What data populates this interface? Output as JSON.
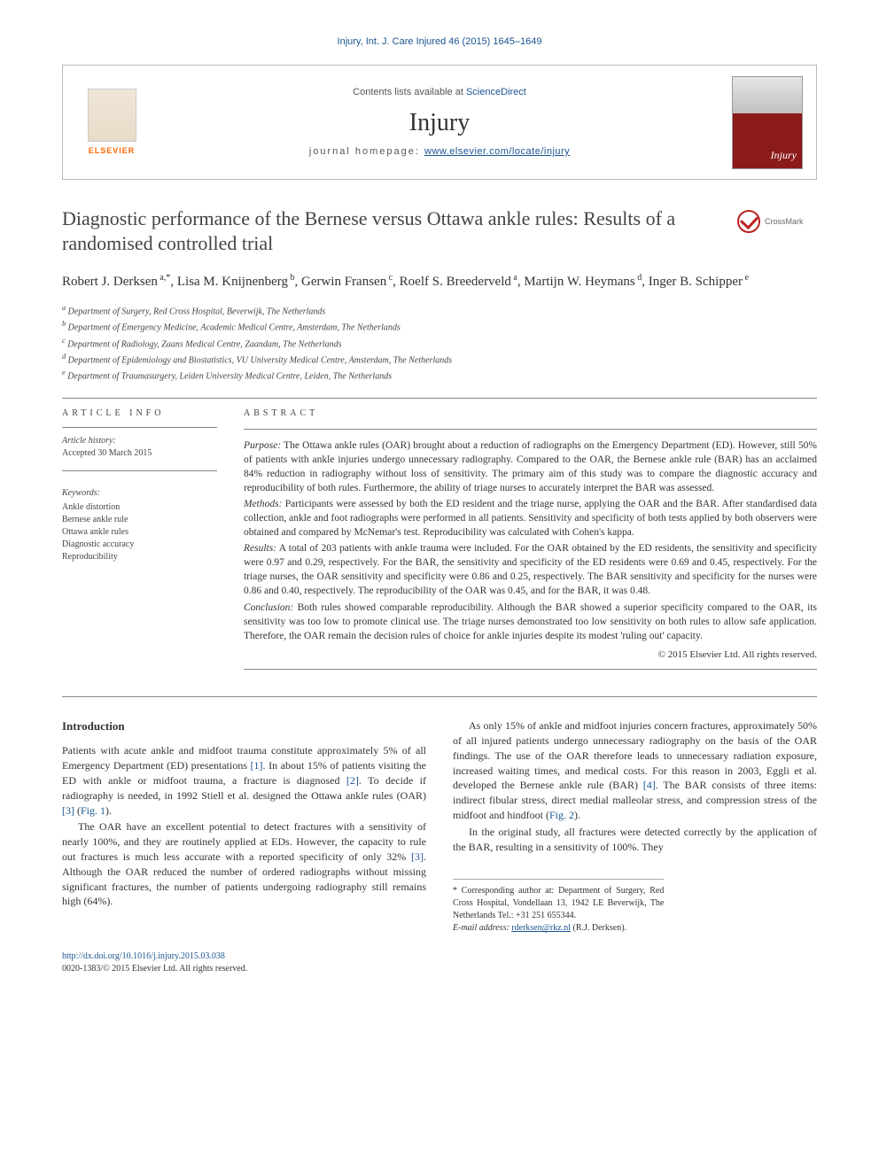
{
  "runningHead": "Injury, Int. J. Care Injured 46 (2015) 1645–1649",
  "masthead": {
    "contentsLine": "Contents lists available at ",
    "contentsLink": "ScienceDirect",
    "journalTitle": "Injury",
    "homepagePrefix": "journal homepage: ",
    "homepageUrl": "www.elsevier.com/locate/injury",
    "publisher": "ELSEVIER"
  },
  "crossmark": "CrossMark",
  "title": "Diagnostic performance of the Bernese versus Ottawa ankle rules: Results of a randomised controlled trial",
  "authors": [
    {
      "name": "Robert J. Derksen",
      "affil": "a,",
      "corr": true
    },
    {
      "name": "Lisa M. Knijnenberg",
      "affil": "b"
    },
    {
      "name": "Gerwin Fransen",
      "affil": "c"
    },
    {
      "name": "Roelf S. Breederveld",
      "affil": "a"
    },
    {
      "name": "Martijn W. Heymans",
      "affil": "d"
    },
    {
      "name": "Inger B. Schipper",
      "affil": "e"
    }
  ],
  "affiliations": [
    {
      "key": "a",
      "text": "Department of Surgery, Red Cross Hospital, Beverwijk, The Netherlands"
    },
    {
      "key": "b",
      "text": "Department of Emergency Medicine, Academic Medical Centre, Amsterdam, The Netherlands"
    },
    {
      "key": "c",
      "text": "Department of Radiology, Zaans Medical Centre, Zaandam, The Netherlands"
    },
    {
      "key": "d",
      "text": "Department of Epidemiology and Biostatistics, VU University Medical Centre, Amsterdam, The Netherlands"
    },
    {
      "key": "e",
      "text": "Department of Traumasurgery, Leiden University Medical Centre, Leiden, The Netherlands"
    }
  ],
  "articleInfo": {
    "label": "ARTICLE INFO",
    "historyLabel": "Article history:",
    "accepted": "Accepted 30 March 2015",
    "keywordsLabel": "Keywords:",
    "keywords": [
      "Ankle distortion",
      "Bernese ankle rule",
      "Ottawa ankle rules",
      "Diagnostic accuracy",
      "Reproducibility"
    ]
  },
  "abstract": {
    "label": "ABSTRACT",
    "sections": [
      {
        "head": "Purpose:",
        "text": " The Ottawa ankle rules (OAR) brought about a reduction of radiographs on the Emergency Department (ED). However, still 50% of patients with ankle injuries undergo unnecessary radiography. Compared to the OAR, the Bernese ankle rule (BAR) has an acclaimed 84% reduction in radiography without loss of sensitivity. The primary aim of this study was to compare the diagnostic accuracy and reproducibility of both rules. Furthermore, the ability of triage nurses to accurately interpret the BAR was assessed."
      },
      {
        "head": "Methods:",
        "text": " Participants were assessed by both the ED resident and the triage nurse, applying the OAR and the BAR. After standardised data collection, ankle and foot radiographs were performed in all patients. Sensitivity and specificity of both tests applied by both observers were obtained and compared by McNemar's test. Reproducibility was calculated with Cohen's kappa."
      },
      {
        "head": "Results:",
        "text": " A total of 203 patients with ankle trauma were included. For the OAR obtained by the ED residents, the sensitivity and specificity were 0.97 and 0.29, respectively. For the BAR, the sensitivity and specificity of the ED residents were 0.69 and 0.45, respectively. For the triage nurses, the OAR sensitivity and specificity were 0.86 and 0.25, respectively. The BAR sensitivity and specificity for the nurses were 0.86 and 0.40, respectively. The reproducibility of the OAR was 0.45, and for the BAR, it was 0.48."
      },
      {
        "head": "Conclusion:",
        "text": " Both rules showed comparable reproducibility. Although the BAR showed a superior specificity compared to the OAR, its sensitivity was too low to promote clinical use. The triage nurses demonstrated too low sensitivity on both rules to allow safe application. Therefore, the OAR remain the decision rules of choice for ankle injuries despite its modest 'ruling out' capacity."
      }
    ],
    "copyright": "© 2015 Elsevier Ltd. All rights reserved."
  },
  "body": {
    "heading": "Introduction",
    "paragraphs": [
      {
        "pre": "Patients with acute ankle and midfoot trauma constitute approximately 5% of all Emergency Department (ED) presentations ",
        "ref1": "[1]",
        "mid": ". In about 15% of patients visiting the ED with ankle or midfoot trauma, a fracture is diagnosed ",
        "ref2": "[2]",
        "mid2": ". To decide if radiography is needed, in 1992 Stiell et al. designed the Ottawa ankle rules (OAR) ",
        "ref3": "[3]",
        "post": " (",
        "fig": "Fig. 1",
        "post2": ")."
      },
      {
        "pre": "The OAR have an excellent potential to detect fractures with a sensitivity of nearly 100%, and they are routinely applied at EDs. However, the capacity to rule out fractures is much less accurate with a reported specificity of only 32% ",
        "ref1": "[3]",
        "post": ". Although the OAR reduced the number of ordered radiographs without missing significant fractures, the number of patients undergoing radiography still remains high (64%)."
      },
      {
        "pre": "As only 15% of ankle and midfoot injuries concern fractures, approximately 50% of all injured patients undergo unnecessary radiography on the basis of the OAR findings. The use of the OAR therefore leads to unnecessary radiation exposure, increased waiting times, and medical costs. For this reason in 2003, Eggli et al. developed the Bernese ankle rule (BAR) ",
        "ref1": "[4]",
        "post": ". The BAR consists of three items: indirect fibular stress, direct medial malleolar stress, and compression stress of the midfoot and hindfoot (",
        "fig": "Fig. 2",
        "post2": ")."
      },
      {
        "pre": "In the original study, all fractures were detected correctly by the application of the BAR, resulting in a sensitivity of 100%. They"
      }
    ]
  },
  "correspondence": {
    "text": "* Corresponding author at: Department of Surgery, Red Cross Hospital, Vondellaan 13, 1942 LE Beverwijk, The Netherlands Tel.: +31 251 655344.",
    "emailLabel": "E-mail address: ",
    "email": "rderksen@rkz.nl",
    "emailSuffix": " (R.J. Derksen)."
  },
  "doi": {
    "url": "http://dx.doi.org/10.1016/j.injury.2015.03.038",
    "issn": "0020-1383/© 2015 Elsevier Ltd. All rights reserved."
  },
  "colors": {
    "link": "#1a5490",
    "accent": "#ff6600",
    "crossmark": "#b22222"
  }
}
